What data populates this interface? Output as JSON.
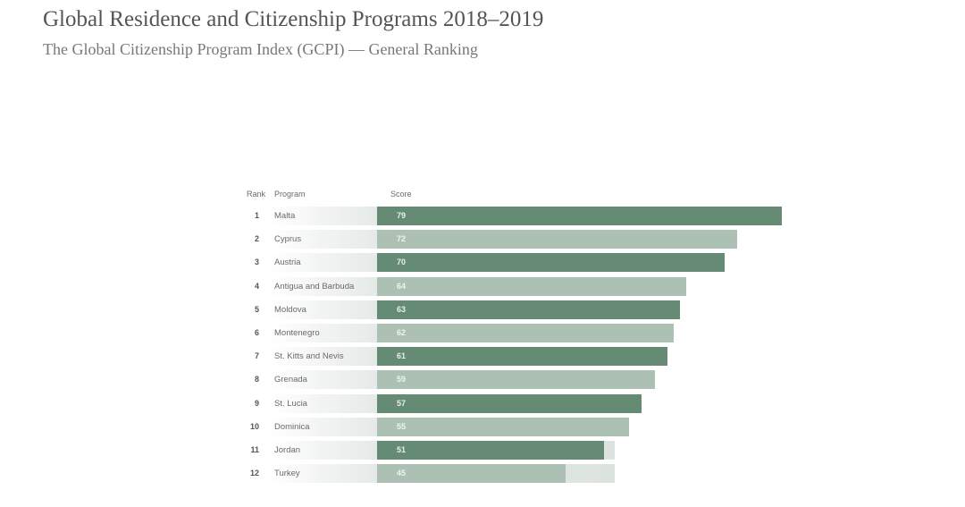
{
  "chart_data": {
    "type": "bar",
    "orientation": "horizontal",
    "title": "Global Residence and Citizenship Programs 2018–2019",
    "subtitle": "The Global Citizenship Program Index (GCPI) — General Ranking",
    "columns": {
      "rank": "Rank",
      "program": "Program",
      "score": "Score"
    },
    "ranks": [
      "1",
      "2",
      "3",
      "4",
      "5",
      "6",
      "7",
      "8",
      "9",
      "10",
      "11",
      "12"
    ],
    "categories": [
      "Malta",
      "Cyprus",
      "Austria",
      "Antigua and Barbuda",
      "Moldova",
      "Montenegro",
      "St. Kitts and Nevis",
      "Grenada",
      "St. Lucia",
      "Dominica",
      "Jordan",
      "Turkey"
    ],
    "values": [
      79,
      72,
      70,
      64,
      63,
      62,
      61,
      59,
      57,
      55,
      51,
      45
    ],
    "colors": {
      "dark": "#668b74",
      "light": "#adc0b4"
    },
    "xlabel": "",
    "ylabel": "",
    "grid": false,
    "legend": "none"
  }
}
